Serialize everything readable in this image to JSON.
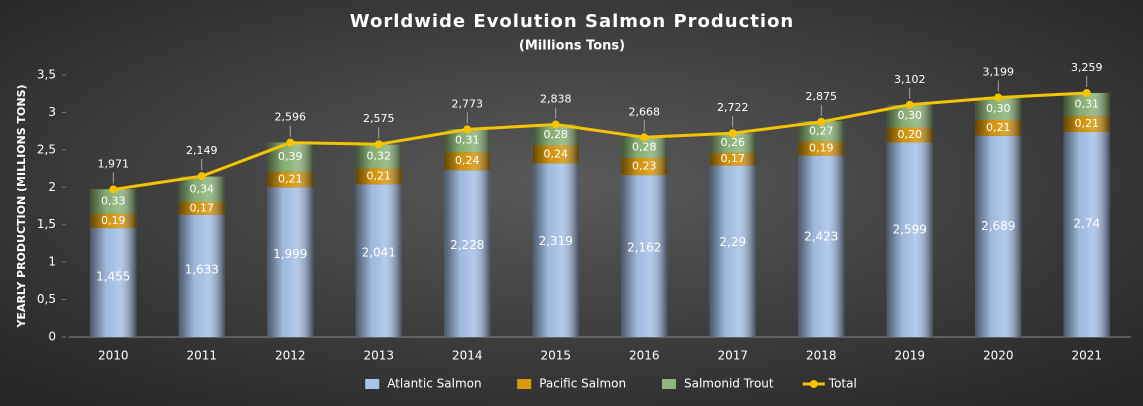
{
  "chart_data": {
    "type": "bar",
    "stacked": true,
    "title": "Worldwide  Evolution  Salmon  Production",
    "subtitle": "(Millions Tons)",
    "y_label": "YEARLY PRODUCTION (MILLIONS TONS)",
    "categories": [
      "2010",
      "2011",
      "2012",
      "2013",
      "2014",
      "2015",
      "2016",
      "2017",
      "2018",
      "2019",
      "2020",
      "2021"
    ],
    "series": [
      {
        "name": "Atlantic Salmon",
        "type": "bar",
        "color": "#a9c4ea",
        "values": [
          1.455,
          1.633,
          1.999,
          2.041,
          2.228,
          2.319,
          2.162,
          2.29,
          2.423,
          2.599,
          2.689,
          2.74
        ],
        "value_labels": [
          "1,455",
          "1,633",
          "1,999",
          "2,041",
          "2,228",
          "2,319",
          "2,162",
          "2,29",
          "2,423",
          "2,599",
          "2,689",
          "2,74"
        ]
      },
      {
        "name": "Pacific Salmon",
        "type": "bar",
        "color": "#d99a0e",
        "values": [
          0.19,
          0.17,
          0.21,
          0.21,
          0.24,
          0.24,
          0.23,
          0.17,
          0.19,
          0.2,
          0.21,
          0.21
        ],
        "value_labels": [
          "0,19",
          "0,17",
          "0,21",
          "0,21",
          "0,24",
          "0,24",
          "0,23",
          "0,17",
          "0,19",
          "0,20",
          "0,21",
          "0,21"
        ]
      },
      {
        "name": "Salmonid Trout",
        "type": "bar",
        "color": "#8fb77c",
        "values": [
          0.33,
          0.34,
          0.39,
          0.32,
          0.31,
          0.28,
          0.28,
          0.26,
          0.27,
          0.3,
          0.3,
          0.31
        ],
        "value_labels": [
          "0,33",
          "0,34",
          "0,39",
          "0,32",
          "0,31",
          "0,28",
          "0,28",
          "0,26",
          "0,27",
          "0,30",
          "0,30",
          "0,31"
        ]
      },
      {
        "name": "Total",
        "type": "line",
        "color": "#f5c400",
        "values": [
          1.971,
          2.149,
          2.596,
          2.575,
          2.773,
          2.838,
          2.668,
          2.722,
          2.875,
          3.102,
          3.199,
          3.259
        ],
        "value_labels": [
          "1,971",
          "2,149",
          "2,596",
          "2,575",
          "2,773",
          "2,838",
          "2,668",
          "2,722",
          "2,875",
          "3,102",
          "3,199",
          "3,259"
        ]
      }
    ],
    "ylim": [
      0,
      3.5
    ],
    "yticks": [
      0,
      {
        "value": 0.5,
        "label": "0,5"
      },
      1,
      {
        "value": 1.5,
        "label": "1,5"
      },
      2,
      {
        "value": 2.5,
        "label": "2,5"
      },
      3,
      {
        "value": 3.5,
        "label": "3,5"
      }
    ],
    "grid": false,
    "legend": "bottom"
  }
}
